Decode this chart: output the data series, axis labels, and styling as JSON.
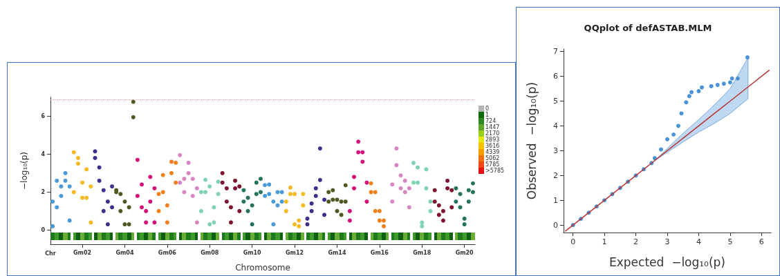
{
  "chart_data": [
    {
      "type": "scatter",
      "ylabel": "−log₁₀(p)",
      "xlabel": "Chromosome",
      "categories": [
        null,
        null,
        null,
        null,
        null,
        null,
        null,
        "Gm02",
        null,
        null,
        null,
        null,
        null,
        null,
        null,
        null,
        null,
        "Gm04",
        null,
        null,
        null,
        null,
        null,
        null,
        null,
        null,
        null,
        "Gm06",
        null,
        null,
        null,
        null,
        null,
        null,
        null,
        null,
        null,
        "Gm08",
        null,
        null,
        null,
        null,
        null,
        null,
        null,
        null,
        null,
        "Gm10",
        null,
        null,
        null,
        null,
        null,
        null,
        null,
        null,
        null,
        "Gm12",
        null,
        null,
        null,
        null,
        null,
        null,
        null,
        null,
        null,
        "Gm14",
        null,
        null,
        null,
        null,
        null,
        null,
        null,
        null,
        null,
        "Gm16",
        null,
        null,
        null,
        null,
        null,
        null,
        null,
        null,
        null,
        "Gm18",
        null,
        null,
        null,
        null,
        null,
        null,
        null,
        null,
        null,
        "Gm20",
        null,
        null
      ],
      "ylim": [
        -0.75,
        7
      ],
      "yticks": [
        0,
        2,
        4,
        6
      ],
      "grid": false,
      "marker": "circle",
      "ref_lines": [
        {
          "axis": "y",
          "value": 6.87,
          "color": "#e39a9a",
          "line_style": "dotted"
        }
      ],
      "annotations": [
        "Chr",
        "0",
        "1",
        "724",
        "1447",
        "2170",
        "2893",
        "3616",
        "4339",
        "5062",
        "5785",
        ">5785"
      ],
      "series": [
        {
          "values": [
            1.5,
            2.6,
            2.3,
            3.0,
            2.3,
            4.1,
            3.8,
            2.5,
            3.2,
            2.3,
            4.15,
            3.3,
            2.1,
            1.5,
            2.3,
            2.1,
            1.9,
            1.5,
            1.2,
            6.76,
            3.7,
            2.4,
            1.0,
            2.8,
            2.2,
            1.9,
            2.9,
            1.3,
            3.6,
            3.55,
            3.95,
            2.7,
            3.55,
            2.7,
            2.2,
            2.0,
            2.65,
            2.3,
            1.2,
            2.55,
            3.0,
            2.2,
            1.2,
            2.6,
            2.3,
            2.1,
            1.7,
            1.3,
            2.5,
            2.7,
            2.37,
            2.4,
            1.5,
            2.0,
            2.0,
            1.5,
            2.24,
            1.9,
            0.5,
            1.9,
            0.6,
            1.4,
            2.2,
            4.3,
            1.6,
            2.0,
            2.1,
            1.6,
            1.5,
            2.36,
            1.0,
            2.8,
            4.66,
            4.1,
            2.5,
            2.46,
            2.0,
            1.0,
            0.5,
            null,
            2.4,
            4.3,
            2.88,
            2.6,
            2.2,
            3.54,
            3.3,
            0.4,
            3.2,
            1.5,
            2.1,
            1.3,
            1.0,
            2.6,
            2.1,
            2.2,
            1.9,
            0.6,
            2.1,
            2.46
          ],
          "colors": [
            "#4a9ad8",
            "#4a9ad8",
            "#4a9ad8",
            "#4a9ad8",
            "#4a9ad8",
            "#f5b921",
            "#f5b921",
            "#f5b921",
            "#f5b921",
            "#f5b921",
            "#3f2f8c",
            "#3f2f8c",
            "#3f2f8c",
            "#3f2f8c",
            "#3f2f8c",
            "#4e5a22",
            "#4e5a22",
            "#4e5a22",
            "#4e5a22",
            "#4e5a22",
            "#d4117a",
            "#d4117a",
            "#d4117a",
            "#d4117a",
            "#d4117a",
            "#f07f1c",
            "#f07f1c",
            "#f07f1c",
            "#f07f1c",
            "#f07f1c",
            "#d985c0",
            "#d985c0",
            "#d985c0",
            "#d985c0",
            "#d985c0",
            "#7fd3b3",
            "#7fd3b3",
            "#7fd3b3",
            "#7fd3b3",
            "#7fd3b3",
            "#7e1330",
            "#7e1330",
            "#7e1330",
            "#7e1330",
            "#7e1330",
            "#24735f",
            "#24735f",
            "#24735f",
            "#24735f",
            "#24735f",
            "#4a9ad8",
            "#4a9ad8",
            "#4a9ad8",
            "#4a9ad8",
            "#4a9ad8",
            "#f5b921",
            "#f5b921",
            "#f5b921",
            "#f5b921",
            "#f5b921",
            "#3f2f8c",
            "#3f2f8c",
            "#3f2f8c",
            "#3f2f8c",
            "#3f2f8c",
            "#4e5a22",
            "#4e5a22",
            "#4e5a22",
            "#4e5a22",
            "#4e5a22",
            "#d4117a",
            "#d4117a",
            "#d4117a",
            "#d4117a",
            "#d4117a",
            "#f07f1c",
            "#f07f1c",
            "#f07f1c",
            "#f07f1c",
            "#f07f1c",
            "#d985c0",
            "#d985c0",
            "#d985c0",
            "#d985c0",
            "#d985c0",
            "#7fd3b3",
            "#7fd3b3",
            "#7fd3b3",
            "#7fd3b3",
            "#7fd3b3",
            "#7e1330",
            "#7e1330",
            "#7e1330",
            "#7e1330",
            "#7e1330",
            "#24735f",
            "#24735f",
            "#24735f",
            "#24735f",
            "#24735f"
          ]
        },
        {
          "values": [
            0.2,
            1.2,
            1.8,
            2.6,
            0.5,
            2.0,
            3.5,
            1.7,
            1.7,
            0.4,
            3.8,
            2.6,
            1.0,
            0.3,
            1.2,
            2.0,
            1.0,
            0.3,
            0.3,
            5.95,
            1.8,
            1.2,
            0.4,
            1.5,
            0.4,
            1.0,
            2.0,
            0.4,
            3.0,
            2.5,
            2.5,
            2.0,
            3.0,
            1.8,
            0.4,
            1.0,
            2.0,
            0.3,
            0.4,
            1.9,
            2.5,
            1.5,
            0.4,
            2.2,
            1.0,
            1.5,
            1.0,
            0.3,
            1.9,
            2.0,
            1.8,
            1.9,
            0.3,
            1.3,
            1.5,
            1.0,
            1.9,
            0.3,
            0.2,
            1.3,
            0.3,
            1.0,
            1.8,
            2.64,
            0.8,
            1.5,
            1.6,
            1.0,
            0.8,
            1.5,
            0.5,
            2.2,
            4.1,
            3.6,
            1.5,
            2.0,
            1.0,
            0.5,
            0.2,
            null,
            1.5,
            3.42,
            2.2,
            2.0,
            1.2,
            2.5,
            2.5,
            0.2,
            2.2,
            1.0,
            1.5,
            0.8,
            0.5,
            2.2,
            1.2,
            1.5,
            1.2,
            0.3,
            1.5,
            2.0
          ],
          "colors": [
            "#4a9ad8",
            "#4a9ad8",
            "#4a9ad8",
            "#4a9ad8",
            "#4a9ad8",
            "#f5b921",
            "#f5b921",
            "#f5b921",
            "#f5b921",
            "#f5b921",
            "#3f2f8c",
            "#3f2f8c",
            "#3f2f8c",
            "#3f2f8c",
            "#3f2f8c",
            "#4e5a22",
            "#4e5a22",
            "#4e5a22",
            "#4e5a22",
            "#4e5a22",
            "#d4117a",
            "#d4117a",
            "#d4117a",
            "#d4117a",
            "#d4117a",
            "#f07f1c",
            "#f07f1c",
            "#f07f1c",
            "#f07f1c",
            "#f07f1c",
            "#d985c0",
            "#d985c0",
            "#d985c0",
            "#d985c0",
            "#d985c0",
            "#7fd3b3",
            "#7fd3b3",
            "#7fd3b3",
            "#7fd3b3",
            "#7fd3b3",
            "#7e1330",
            "#7e1330",
            "#7e1330",
            "#7e1330",
            "#7e1330",
            "#24735f",
            "#24735f",
            "#24735f",
            "#24735f",
            "#24735f",
            "#4a9ad8",
            "#4a9ad8",
            "#4a9ad8",
            "#4a9ad8",
            "#4a9ad8",
            "#f5b921",
            "#f5b921",
            "#f5b921",
            "#f5b921",
            "#f5b921",
            "#3f2f8c",
            "#3f2f8c",
            "#3f2f8c",
            "#3f2f8c",
            "#3f2f8c",
            "#4e5a22",
            "#4e5a22",
            "#4e5a22",
            "#4e5a22",
            "#4e5a22",
            "#d4117a",
            "#d4117a",
            "#d4117a",
            "#d4117a",
            "#d4117a",
            "#f07f1c",
            "#f07f1c",
            "#f07f1c",
            "#f07f1c",
            "#f07f1c",
            "#d985c0",
            "#d985c0",
            "#d985c0",
            "#d985c0",
            "#d985c0",
            "#7fd3b3",
            "#7fd3b3",
            "#7fd3b3",
            "#7fd3b3",
            "#7fd3b3",
            "#7e1330",
            "#7e1330",
            "#7e1330",
            "#7e1330",
            "#7e1330",
            "#24735f",
            "#24735f",
            "#24735f",
            "#24735f",
            "#24735f"
          ]
        }
      ]
    },
    {
      "type": "scatter",
      "title": "QQplot of defASTAB.MLM",
      "xlabel": "Expected  −log₁₀(p)",
      "ylabel": "Observed  −log₁₀(p)",
      "xlim": [
        -0.3,
        6.3
      ],
      "xticks": [
        0,
        1,
        2,
        3,
        4,
        5,
        6
      ],
      "ylim": [
        -0.3,
        7.1
      ],
      "yticks": [
        0,
        1,
        2,
        3,
        4,
        5,
        6,
        7
      ],
      "grid": false,
      "marker": "circle",
      "series": [
        {
          "type": "line",
          "color": "#b83232",
          "marker": "none",
          "x": [
            -0.24,
            2.6,
            3.5,
            4.0,
            4.5,
            5.0,
            5.57,
            6.24
          ],
          "values": [
            -0.24,
            2.6,
            3.5,
            4.0,
            4.5,
            5.0,
            5.57,
            6.24
          ],
          "lower": [
            null,
            2.6,
            3.35,
            3.75,
            4.1,
            4.5,
            5.1,
            null
          ],
          "upper": [
            null,
            2.6,
            3.7,
            4.25,
            4.85,
            5.5,
            6.75,
            null
          ]
        },
        {
          "color": "#4a93d6",
          "x": [
            0,
            0.25,
            0.5,
            0.75,
            1.0,
            1.25,
            1.5,
            1.75,
            2.0,
            2.25,
            2.5,
            2.6,
            2.8,
            3.0,
            3.2,
            3.35,
            3.45,
            3.6,
            3.7,
            3.77,
            4.0,
            4.1,
            4.4,
            4.6,
            4.8,
            5.0,
            5.06,
            5.24,
            5.55
          ],
          "values": [
            0,
            0.25,
            0.5,
            0.75,
            1.0,
            1.25,
            1.5,
            1.75,
            2.0,
            2.25,
            2.5,
            2.7,
            3.05,
            3.46,
            3.65,
            4.0,
            4.5,
            4.95,
            5.2,
            5.36,
            5.4,
            5.55,
            5.6,
            5.65,
            5.7,
            5.75,
            5.91,
            5.91,
            6.76
          ]
        }
      ]
    }
  ]
}
